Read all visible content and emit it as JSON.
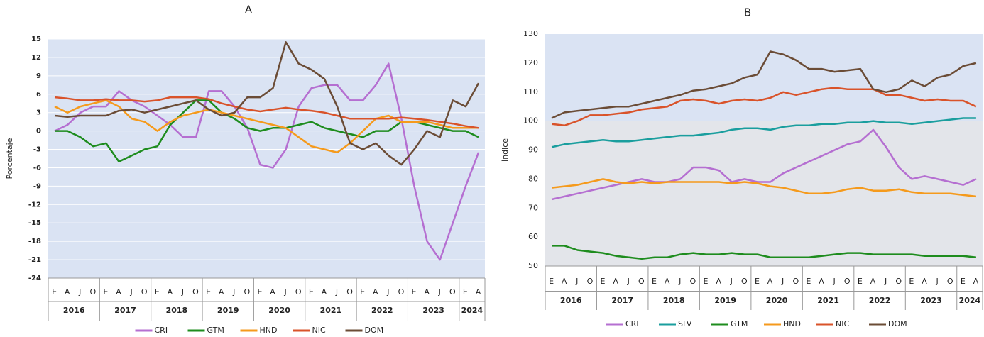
{
  "chart_data": [
    {
      "type": "line",
      "title": "A",
      "y_label": "Porcentaje",
      "categories": [
        "E",
        "A",
        "J",
        "O",
        "E",
        "A",
        "J",
        "O",
        "E",
        "A",
        "J",
        "O",
        "E",
        "A",
        "J",
        "O",
        "E",
        "A",
        "J",
        "O",
        "E",
        "A",
        "J",
        "O",
        "E",
        "A",
        "J",
        "O",
        "E",
        "A",
        "J",
        "O",
        "E",
        "A"
      ],
      "years": [
        "2016",
        "2017",
        "2018",
        "2019",
        "2020",
        "2021",
        "2022",
        "2023",
        "2024"
      ],
      "ylim": [
        -24,
        15
      ],
      "yticks": [
        -24,
        -21,
        -18,
        -15,
        -12,
        -9,
        -6,
        -3,
        0,
        3,
        6,
        9,
        12,
        15
      ],
      "grid": true,
      "background": "#dae3f3",
      "series": [
        {
          "name": "CRI",
          "color": "#b56fd1",
          "values": [
            0,
            1,
            3,
            4,
            4,
            6.5,
            5,
            4,
            2.5,
            1,
            -1,
            -1,
            6.5,
            6.5,
            4,
            0.5,
            -5.5,
            -6,
            -3,
            4,
            7,
            7.5,
            7.5,
            5,
            5,
            7.5,
            11,
            2,
            -9,
            -18,
            -21,
            -15,
            -9,
            -3.5
          ]
        },
        {
          "name": "GTM",
          "color": "#1e8c1e",
          "values": [
            0,
            0,
            -1,
            -2.5,
            -2,
            -5,
            -4,
            -3,
            -2.5,
            1,
            3,
            5,
            5,
            3,
            2,
            0.5,
            0,
            0.5,
            0.5,
            1,
            1.5,
            0.5,
            0,
            -0.5,
            -1,
            0,
            0,
            1.5,
            1.5,
            1,
            0.5,
            0,
            0,
            -1
          ]
        },
        {
          "name": "HND",
          "color": "#f59a1c",
          "values": [
            4,
            3,
            4,
            4.5,
            5,
            4,
            2,
            1.5,
            0,
            1.5,
            2.5,
            3,
            3.5,
            3,
            2.5,
            2,
            1.5,
            1,
            0.5,
            -1,
            -2.5,
            -3,
            -3.5,
            -2,
            0,
            2,
            2.5,
            1.5,
            1.5,
            1.5,
            1,
            0.5,
            0.5,
            0.5
          ]
        },
        {
          "name": "NIC",
          "color": "#d9532a",
          "values": [
            5.5,
            5.3,
            5,
            5,
            5.2,
            5,
            5,
            4.8,
            5,
            5.5,
            5.5,
            5.5,
            5.2,
            4.5,
            4,
            3.5,
            3.2,
            3.5,
            3.8,
            3.5,
            3.3,
            3,
            2.5,
            2,
            2,
            2,
            2,
            2.2,
            2,
            1.8,
            1.5,
            1.2,
            0.8,
            0.5
          ]
        },
        {
          "name": "DOM",
          "color": "#6b4c36",
          "values": [
            2.5,
            2.3,
            2.5,
            2.5,
            2.5,
            3.3,
            3.5,
            3,
            3.5,
            4,
            4.5,
            5,
            3.5,
            2.5,
            3,
            5.5,
            5.5,
            7,
            14.5,
            11,
            10,
            8.5,
            4,
            -2,
            -3,
            -2,
            -4,
            -5.5,
            -3,
            0,
            -1,
            5,
            4,
            7.8
          ]
        }
      ]
    },
    {
      "type": "line",
      "title": "B",
      "y_label": "Índice",
      "categories": [
        "E",
        "A",
        "J",
        "O",
        "E",
        "A",
        "J",
        "O",
        "E",
        "A",
        "J",
        "O",
        "E",
        "A",
        "J",
        "O",
        "E",
        "A",
        "J",
        "O",
        "E",
        "A",
        "J",
        "O",
        "E",
        "A",
        "J",
        "O",
        "E",
        "A",
        "J",
        "O",
        "E",
        "A"
      ],
      "years": [
        "2016",
        "2017",
        "2018",
        "2019",
        "2020",
        "2021",
        "2022",
        "2023",
        "2024"
      ],
      "ylim": [
        50,
        130
      ],
      "yticks": [
        50,
        60,
        70,
        80,
        90,
        100,
        110,
        120,
        130
      ],
      "grid": false,
      "background_bands": [
        {
          "from": 50,
          "to": 100,
          "color": "#e3e5ea"
        },
        {
          "from": 100,
          "to": 130,
          "color": "#dae3f3"
        }
      ],
      "series": [
        {
          "name": "CRI",
          "color": "#b56fd1",
          "values": [
            73,
            74,
            75,
            76,
            77,
            78,
            79,
            80,
            79,
            79,
            80,
            84,
            84,
            83,
            79,
            80,
            79,
            79,
            82,
            84,
            86,
            88,
            90,
            92,
            93,
            97,
            91,
            84,
            80,
            81,
            80,
            79,
            78,
            80
          ]
        },
        {
          "name": "SLV",
          "color": "#1a9e9e",
          "values": [
            91,
            92,
            92.5,
            93,
            93.5,
            93,
            93,
            93.5,
            94,
            94.5,
            95,
            95,
            95.5,
            96,
            97,
            97.5,
            97.5,
            97,
            98,
            98.5,
            98.5,
            99,
            99,
            99.5,
            99.5,
            100,
            99.5,
            99.5,
            99,
            99.5,
            100,
            100.5,
            101,
            101
          ]
        },
        {
          "name": "GTM",
          "color": "#1e8c1e",
          "values": [
            57,
            57,
            55.5,
            55,
            54.5,
            53.5,
            53,
            52.5,
            53,
            53,
            54,
            54.5,
            54,
            54,
            54.5,
            54,
            54,
            53,
            53,
            53,
            53,
            53.5,
            54,
            54.5,
            54.5,
            54,
            54,
            54,
            54,
            53.5,
            53.5,
            53.5,
            53.5,
            53
          ]
        },
        {
          "name": "HND",
          "color": "#f59a1c",
          "values": [
            77,
            77.5,
            78,
            79,
            80,
            79,
            78.5,
            79,
            78.5,
            79,
            79,
            79,
            79,
            79,
            78.5,
            79,
            78.5,
            77.5,
            77,
            76,
            75,
            75,
            75.5,
            76.5,
            77,
            76,
            76,
            76.5,
            75.5,
            75,
            75,
            75,
            74.5,
            74
          ]
        },
        {
          "name": "NIC",
          "color": "#d9532a",
          "values": [
            99,
            98.5,
            100,
            102,
            102,
            102.5,
            103,
            104,
            104.5,
            105,
            107,
            107.5,
            107,
            106,
            107,
            107.5,
            107,
            108,
            110,
            109,
            110,
            111,
            111.5,
            111,
            111,
            111,
            109,
            109,
            108,
            107,
            107.5,
            107,
            107,
            105
          ]
        },
        {
          "name": "DOM",
          "color": "#6b4c36",
          "values": [
            101,
            103,
            103.5,
            104,
            104.5,
            105,
            105,
            106,
            107,
            108,
            109,
            110.5,
            111,
            112,
            113,
            115,
            116,
            124,
            123,
            121,
            118,
            118,
            117,
            117.5,
            118,
            111,
            110,
            111,
            114,
            112,
            115,
            116,
            119,
            120
          ]
        }
      ]
    }
  ]
}
